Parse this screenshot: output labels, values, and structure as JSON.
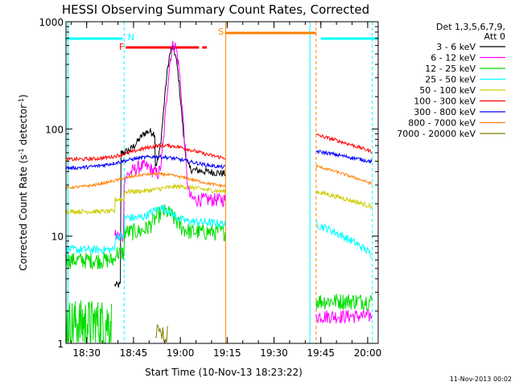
{
  "chart_data": {
    "type": "line",
    "title": "HESSI Observing Summary Count Rates, Corrected",
    "xlabel": "Start Time (10-Nov-13 18:23:22)",
    "ylabel_main": "Corrected Count Rate (s",
    "ylabel_sup1": "-1",
    "ylabel_mid": " detector",
    "ylabel_sup2": "-1",
    "ylabel_end": ")",
    "y_scale": "log",
    "ylim": [
      1,
      1000
    ],
    "xlim_minutes": [
      23.37,
      100
    ],
    "x_ticks": [
      {
        "label": "18:30",
        "min": 30
      },
      {
        "label": "18:45",
        "min": 45
      },
      {
        "label": "19:00",
        "min": 60
      },
      {
        "label": "19:15",
        "min": 75
      },
      {
        "label": "19:30",
        "min": 90
      },
      {
        "label": "19:45",
        "min": 105
      },
      {
        "label": "20:00",
        "min": 120
      }
    ],
    "y_ticks": [
      {
        "label": "1",
        "value": 1
      },
      {
        "label": "10",
        "value": 10
      },
      {
        "label": "100",
        "value": 100
      },
      {
        "label": "1000",
        "value": 1000
      }
    ],
    "legend": {
      "header1": "Det 1,3,5,6,7,9,",
      "header2": "Att 0",
      "placement": "right"
    },
    "series": [
      {
        "name": "3 - 6 keV",
        "color": "#000000"
      },
      {
        "name": "6 - 12 keV",
        "color": "#ff00ff"
      },
      {
        "name": "12 - 25 keV",
        "color": "#00dd00"
      },
      {
        "name": "25 - 50 keV",
        "color": "#00ffff"
      },
      {
        "name": "50 - 100 keV",
        "color": "#cccc00"
      },
      {
        "name": "100 - 300 keV",
        "color": "#ff0000"
      },
      {
        "name": "300 - 800 keV",
        "color": "#0000ff"
      },
      {
        "name": "800 - 7000 keV",
        "color": "#ff8000"
      },
      {
        "name": "7000 - 20000 keV",
        "color": "#808000"
      }
    ],
    "flags": [
      {
        "label": "N",
        "color": "#00ffff"
      },
      {
        "label": "F",
        "color": "#ff0000"
      },
      {
        "label": "S",
        "color": "#ff8000"
      }
    ],
    "timestamp": "11-Nov-2013 00:02"
  }
}
